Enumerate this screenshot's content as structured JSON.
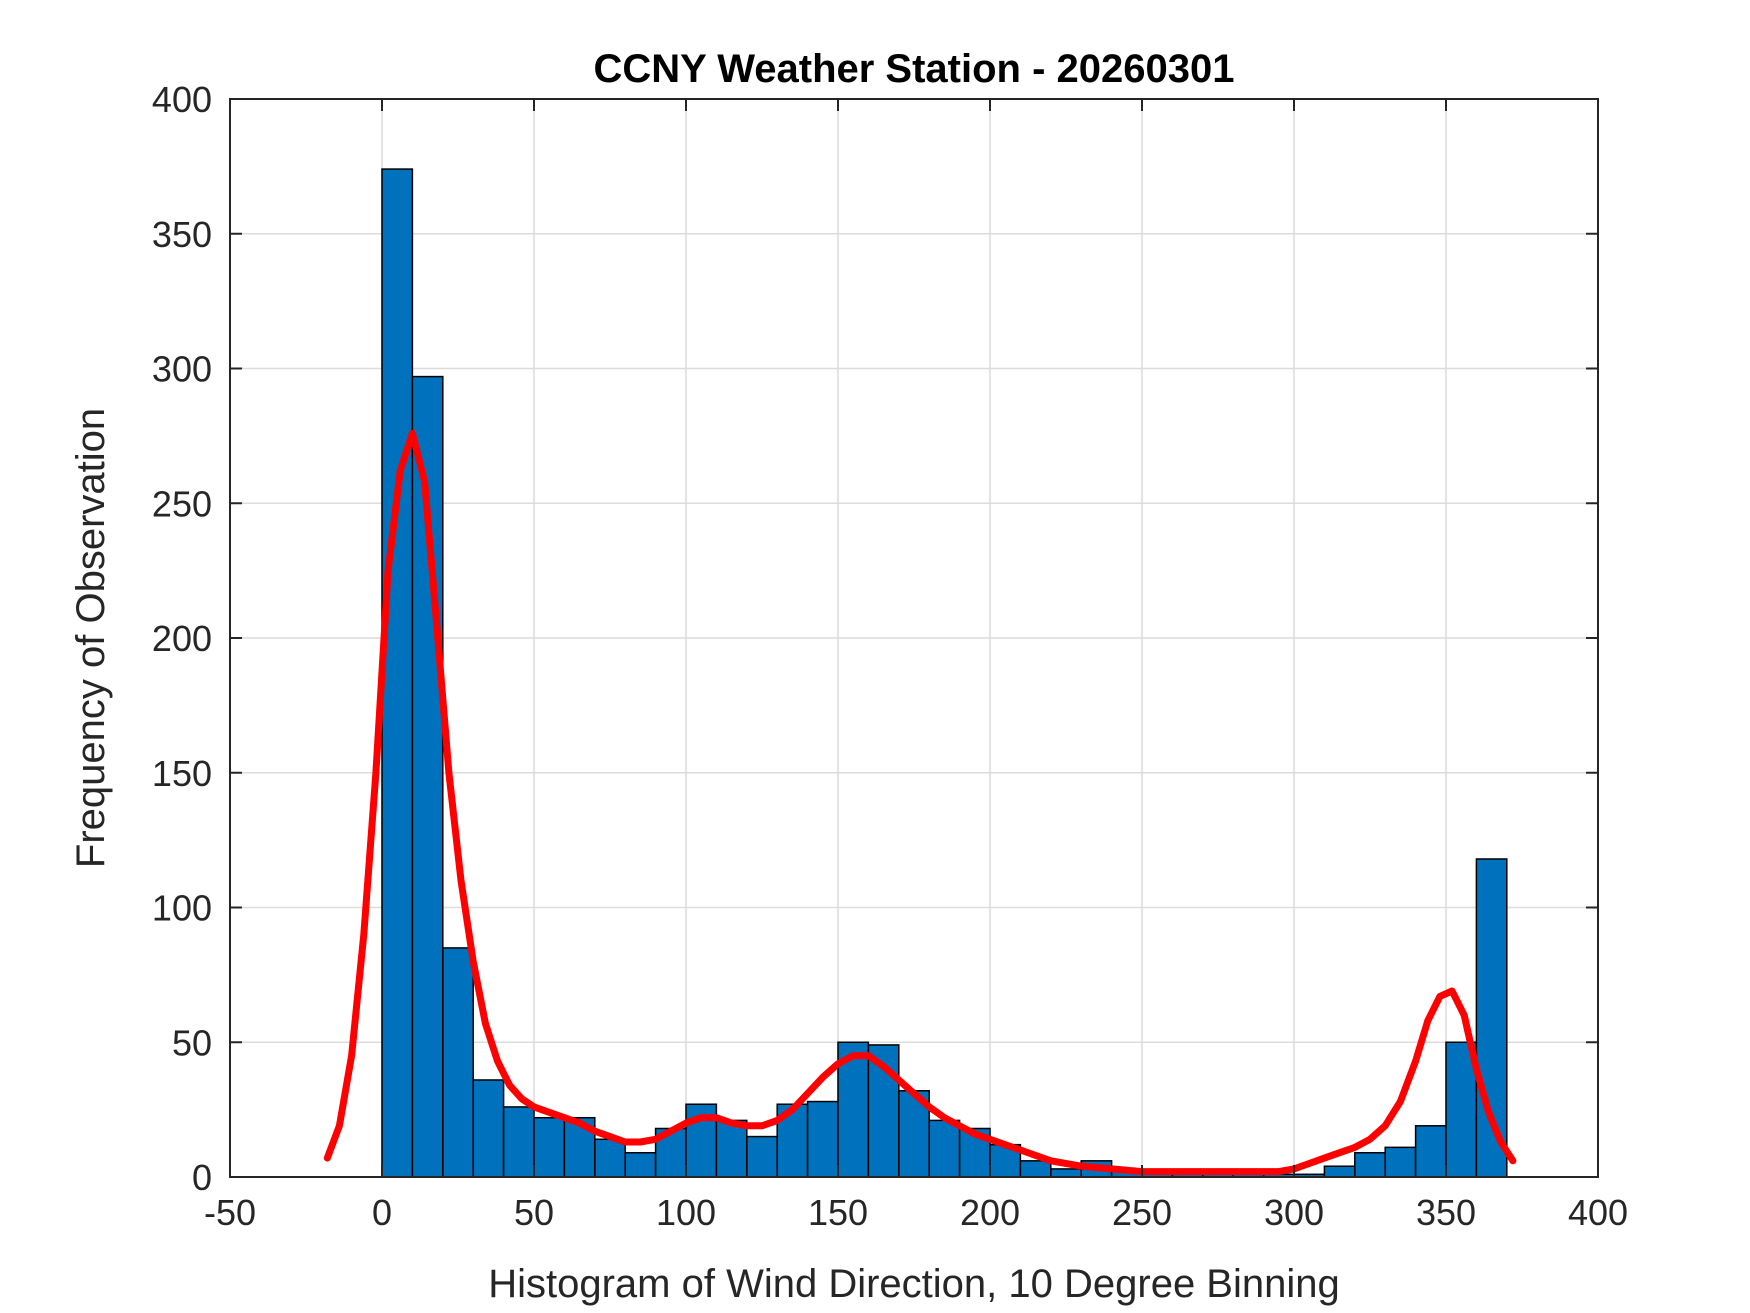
{
  "chart_data": {
    "type": "bar",
    "title": "CCNY Weather Station - 20260301",
    "xlabel": "Histogram of Wind Direction, 10 Degree Binning",
    "ylabel": "Frequency of Observation",
    "xlim": [
      -50,
      400
    ],
    "ylim": [
      0,
      400
    ],
    "xticks": [
      -50,
      0,
      50,
      100,
      150,
      200,
      250,
      300,
      350,
      400
    ],
    "yticks": [
      0,
      50,
      100,
      150,
      200,
      250,
      300,
      350,
      400
    ],
    "grid": true,
    "bin_width": 10,
    "bin_edges_start": 0,
    "values": [
      374,
      297,
      85,
      36,
      26,
      22,
      22,
      14,
      9,
      18,
      27,
      21,
      15,
      27,
      28,
      50,
      49,
      32,
      21,
      18,
      12,
      6,
      3,
      6,
      3,
      2,
      1,
      1,
      1,
      1,
      1,
      4,
      9,
      11,
      19,
      50,
      118
    ],
    "bar_color": "#0072BD",
    "curve": {
      "color": "#FF0000",
      "x": [
        -18,
        -14,
        -10,
        -6,
        -2,
        2,
        6,
        10,
        14,
        18,
        22,
        26,
        30,
        34,
        38,
        42,
        46,
        50,
        55,
        60,
        65,
        70,
        75,
        80,
        85,
        90,
        95,
        100,
        105,
        110,
        115,
        120,
        125,
        130,
        135,
        140,
        145,
        150,
        155,
        160,
        165,
        170,
        175,
        180,
        185,
        190,
        195,
        200,
        205,
        210,
        220,
        230,
        240,
        250,
        260,
        270,
        280,
        290,
        295,
        300,
        305,
        310,
        315,
        320,
        325,
        330,
        335,
        340,
        344,
        348,
        352,
        356,
        360,
        364,
        368,
        372
      ],
      "y": [
        7,
        19,
        45,
        90,
        150,
        225,
        262,
        276,
        258,
        205,
        150,
        110,
        80,
        57,
        43,
        34,
        29,
        26,
        24,
        22,
        20,
        17,
        15,
        13,
        13,
        14,
        17,
        20,
        22,
        22,
        20,
        19,
        19,
        21,
        25,
        31,
        37,
        42,
        45,
        45,
        41,
        36,
        31,
        26,
        22,
        19,
        16,
        14,
        12,
        10,
        6,
        4,
        3,
        2,
        2,
        2,
        2,
        2,
        2,
        3,
        5,
        7,
        9,
        11,
        14,
        19,
        28,
        43,
        58,
        67,
        69,
        60,
        40,
        24,
        13,
        6
      ]
    }
  }
}
